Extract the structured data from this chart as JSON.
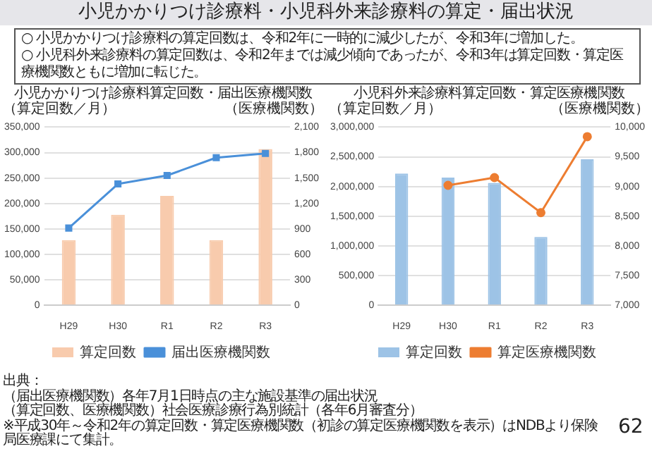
{
  "chart_data": [
    {
      "type": "bar",
      "title": "小児かかりつけ診療料算定回数・届出医療機関数",
      "ylabel": "（算定回数／月）",
      "y2label": "（医療機関数）",
      "annotations": [
        "小児かかりつけ診療料・小児科外来診療料の算定・届出状況",
        "○ 小児かかりつけ診療料の算定回数は、令和2年に一時的に減少したが、令和3年に増加した。",
        "○ 小児科外来診療料の算定回数は、令和2年までは減少傾向であったが、令和3年は算定回数・算定医療機関数ともに増加に転じた。"
      ],
      "categories": [
        "H29",
        "H30",
        "R1",
        "R2",
        "R3"
      ],
      "series": [
        {
          "name": "算定回数",
          "color": "#f8cbad",
          "values": [
            128000,
            178000,
            215000,
            128000,
            307000
          ]
        },
        {
          "name": "届出医療機関数",
          "type": "line",
          "axis": "y2",
          "color": "#4a90d9",
          "values": [
            910,
            1430,
            1530,
            1740,
            1790
          ]
        }
      ],
      "ylim": [
        0,
        350000
      ],
      "yticks": [
        0,
        {
          "value": 50000,
          "label": "50,000"
        },
        {
          "value": 100000,
          "label": "100,000"
        },
        {
          "value": 150000,
          "label": "150,000"
        },
        {
          "value": 200000,
          "label": "200,000"
        },
        {
          "value": 250000,
          "label": "250,000"
        },
        {
          "value": 300000,
          "label": "300,000"
        },
        {
          "value": 350000,
          "label": "350,000"
        }
      ],
      "y2lim": [
        0,
        2100
      ],
      "y2ticks": [
        0,
        300,
        600,
        900,
        {
          "value": 1200,
          "label": "1,200"
        },
        {
          "value": 1500,
          "label": "1,500"
        },
        {
          "value": 1800,
          "label": "1,800"
        },
        {
          "value": 2100,
          "label": "2,100"
        }
      ],
      "grid": "y",
      "legend": "bottom",
      "marker": "square"
    },
    {
      "type": "bar",
      "title": "小児科外来診療料算定回数・算定医療機関数",
      "ylabel": "（算定回数／月）",
      "y2label": "（医療機関数）",
      "annotations": [
        "出典：",
        "（届出医療機関数）各年7月1日時点の主な施設基準の届出状況",
        "（算定回数、医療機関数）社会医療診療行為別統計（各年6月審査分）",
        "※平成30年～令和2年の算定回数・算定医療機関数（初診の算定医療機関数を表示）はNDBより保険局医療課にて集計。",
        "62"
      ],
      "categories": [
        "H29",
        "H30",
        "R1",
        "R2",
        "R3"
      ],
      "series": [
        {
          "name": "算定回数",
          "color": "#9dc3e6",
          "values": [
            2220000,
            2150000,
            2060000,
            1150000,
            2460000
          ]
        },
        {
          "name": "算定医療機関数",
          "type": "line",
          "axis": "y2",
          "color": "#ed7d31",
          "values": [
            null,
            9020,
            9150,
            8560,
            9840
          ]
        }
      ],
      "ylim": [
        0,
        3000000
      ],
      "yticks": [
        0,
        {
          "value": 500000,
          "label": "500,000"
        },
        {
          "value": 1000000,
          "label": "1,000,000"
        },
        {
          "value": 1500000,
          "label": "1,500,000"
        },
        {
          "value": 2000000,
          "label": "2,000,000"
        },
        {
          "value": 2500000,
          "label": "2,500,000"
        },
        {
          "value": 3000000,
          "label": "3,000,000"
        }
      ],
      "y2lim": [
        7000,
        10000
      ],
      "y2ticks": [
        {
          "value": 7000,
          "label": "7,000"
        },
        {
          "value": 7500,
          "label": "7,500"
        },
        {
          "value": 8000,
          "label": "8,000"
        },
        {
          "value": 8500,
          "label": "8,500"
        },
        {
          "value": 9000,
          "label": "9,000"
        },
        {
          "value": 9500,
          "label": "9,500"
        },
        {
          "value": 10000,
          "label": "10,000"
        }
      ],
      "grid": "y",
      "legend": "bottom",
      "marker": "circle"
    }
  ]
}
